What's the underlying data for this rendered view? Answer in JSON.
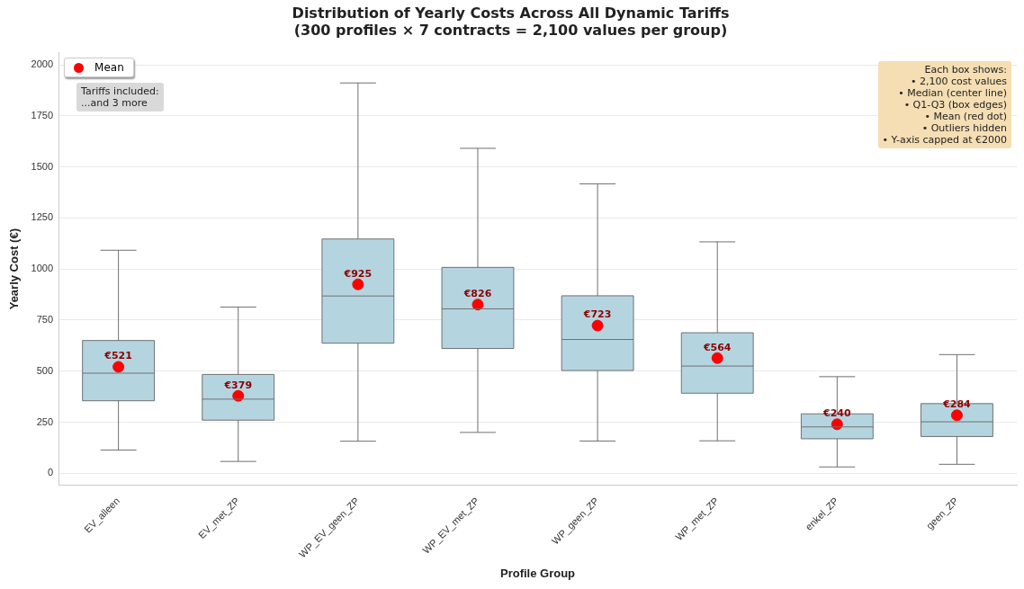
{
  "chart_data": {
    "type": "box",
    "title": "Distribution of Yearly Costs Across All Dynamic Tariffs",
    "subtitle": "(300 profiles × 7 contracts = 2,100 values per group)",
    "xlabel": "Profile Group",
    "ylabel": "Yearly Cost (€)",
    "categories": [
      "EV_alleen",
      "EV_met_ZP",
      "WP_EV_geen_ZP",
      "WP_EV_met_ZP",
      "WP_geen_ZP",
      "WP_met_ZP",
      "enkel_ZP",
      "geen_ZP"
    ],
    "color": "#b4d5e0",
    "boxes": [
      {
        "low": 114,
        "q1": 355,
        "median": 490,
        "q3": 650,
        "high": 1092
      },
      {
        "low": 58,
        "q1": 260,
        "median": 363,
        "q3": 484,
        "high": 814
      },
      {
        "low": 157,
        "q1": 637,
        "median": 868,
        "q3": 1147,
        "high": 1911
      },
      {
        "low": 200,
        "q1": 611,
        "median": 805,
        "q3": 1008,
        "high": 1591
      },
      {
        "low": 158,
        "q1": 503,
        "median": 655,
        "q3": 869,
        "high": 1417
      },
      {
        "low": 159,
        "q1": 392,
        "median": 525,
        "q3": 688,
        "high": 1133
      },
      {
        "low": 31,
        "q1": 169,
        "median": 227,
        "q3": 291,
        "high": 473
      },
      {
        "low": 44,
        "q1": 180,
        "median": 252,
        "q3": 341,
        "high": 581
      }
    ],
    "series": [
      {
        "name": "Mean",
        "type": "scatter",
        "color": "#ff0000",
        "x": [
          "EV_alleen",
          "EV_met_ZP",
          "WP_EV_geen_ZP",
          "WP_EV_met_ZP",
          "WP_geen_ZP",
          "WP_met_ZP",
          "enkel_ZP",
          "geen_ZP"
        ],
        "values": [
          521,
          379,
          925,
          826,
          723,
          564,
          240,
          284
        ],
        "value_labels": [
          "€521",
          "€379",
          "€925",
          "€826",
          "€723",
          "€564",
          "€240",
          "€284"
        ]
      }
    ],
    "ylim": [
      -60,
      2060
    ],
    "yticks": [
      0,
      250,
      500,
      750,
      1000,
      1250,
      1500,
      1750,
      2000
    ],
    "grid": "y",
    "legend": "top left",
    "marker": "circle",
    "annotations": [
      "Tariffs included:\n...and 3 more",
      "Each box shows:\n• 2,100 cost values\n• Median (center line)\n• Q1-Q3 (box edges)\n• Mean (red dot)\n• Outliers hidden\n• Y-axis capped at €2000"
    ]
  }
}
